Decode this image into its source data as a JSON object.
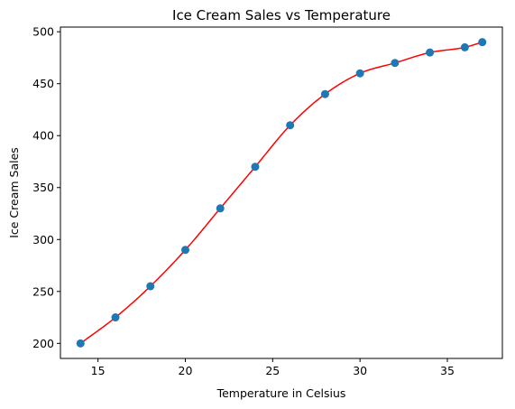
{
  "chart_data": {
    "type": "scatter",
    "title": "Ice Cream Sales vs Temperature",
    "xlabel": "Temperature in Celsius",
    "ylabel": "Ice Cream Sales",
    "xlim": [
      12.85,
      38.15
    ],
    "ylim": [
      185.5,
      504.5
    ],
    "xticks": [
      15,
      20,
      25,
      30,
      35
    ],
    "yticks": [
      200,
      250,
      300,
      350,
      400,
      450,
      500
    ],
    "grid": false,
    "legend": "none",
    "series": [
      {
        "kind": "points",
        "color": "#1f77b4",
        "x": [
          14,
          16,
          18,
          20,
          22,
          24,
          26,
          28,
          30,
          32,
          34,
          36,
          37
        ],
        "y": [
          200,
          225,
          255,
          290,
          330,
          370,
          410,
          440,
          460,
          470,
          480,
          485,
          490
        ]
      },
      {
        "kind": "fitted-curve",
        "color": "#ff0000",
        "x": [
          14,
          16,
          18,
          20,
          22,
          24,
          26,
          28,
          30,
          32,
          34,
          36,
          37
        ],
        "y": [
          200,
          225,
          255,
          290,
          330,
          370,
          410,
          440,
          460,
          470,
          480,
          485,
          490
        ]
      }
    ]
  }
}
